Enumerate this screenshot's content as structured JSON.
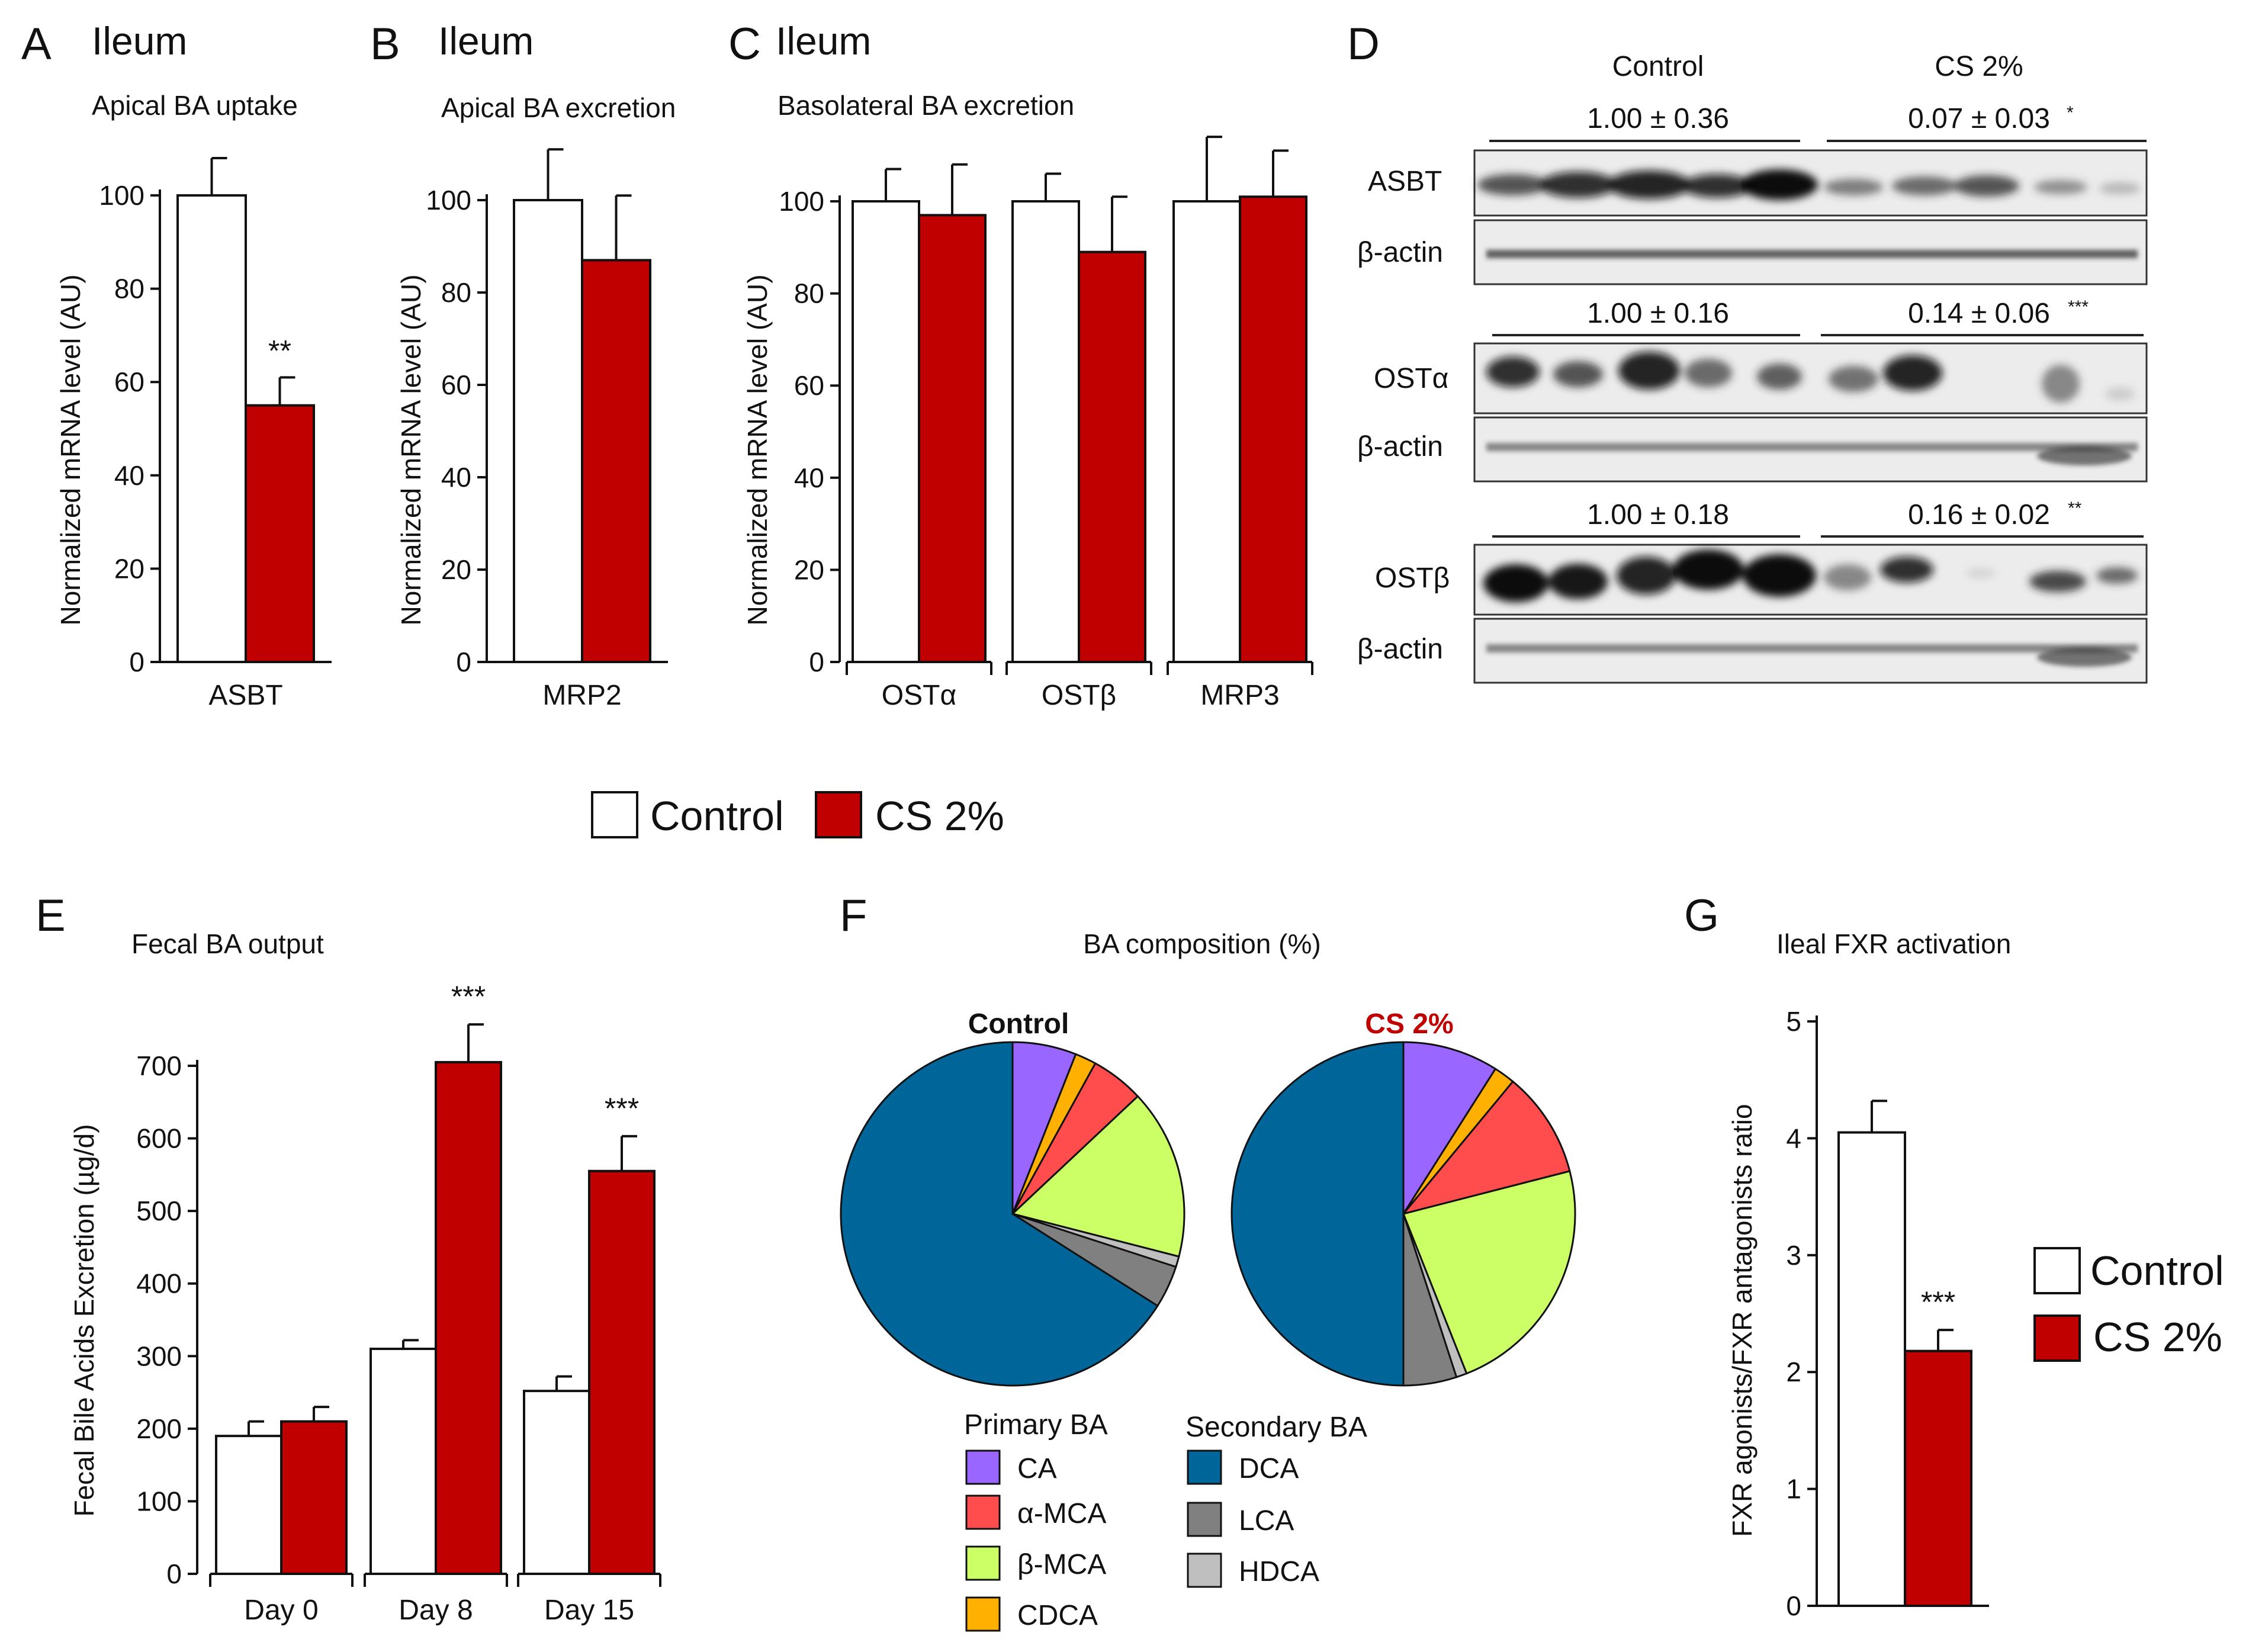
{
  "colors": {
    "control": "#ffffff",
    "cs": "#c00000",
    "CA": "#9966ff",
    "alpha_MCA": "#ff4d4d",
    "beta_MCA": "#ccff66",
    "CDCA": "#ffb000",
    "DCA": "#00669a",
    "LCA": "#808080",
    "HDCA": "#bfbfbf",
    "cs_title": "#c00000"
  },
  "legend": {
    "control": "Control",
    "cs": "CS 2%"
  },
  "panelA": {
    "letter": "A",
    "tissue": "Ileum",
    "subtitle": "Apical BA uptake",
    "ylabel": "Normalized  mRNA level (AU)",
    "yticks": [
      "0",
      "20",
      "40",
      "60",
      "80",
      "100"
    ]
  },
  "panelB": {
    "letter": "B",
    "tissue": "Ileum",
    "subtitle": "Apical BA excretion",
    "ylabel": "Normalized  mRNA level (AU)",
    "yticks": [
      "0",
      "20",
      "40",
      "60",
      "80",
      "100"
    ]
  },
  "panelC": {
    "letter": "C",
    "tissue": "Ileum",
    "subtitle": "Basolateral BA excretion",
    "ylabel": "Normalized  mRNA level (AU)",
    "yticks": [
      "0",
      "20",
      "40",
      "60",
      "80",
      "100"
    ]
  },
  "panelD": {
    "letter": "D",
    "group_control": "Control",
    "group_cs": "CS 2%",
    "blots": [
      {
        "protein": "ASBT",
        "actin": "β-actin",
        "control_val": "1.00 ± 0.36",
        "cs_val": "0.07 ± 0.03",
        "sig": "*"
      },
      {
        "protein": "OSTα",
        "actin": "β-actin",
        "control_val": "1.00 ± 0.16",
        "cs_val": "0.14 ± 0.06",
        "sig": "***"
      },
      {
        "protein": "OSTβ",
        "actin": "β-actin",
        "control_val": "1.00 ± 0.18",
        "cs_val": "0.16 ± 0.02",
        "sig": "**"
      }
    ]
  },
  "panelE": {
    "letter": "E",
    "subtitle": "Fecal BA output",
    "ylabel": "Fecal  Bile Acids   Excretion (µg/d)",
    "yticks": [
      "0",
      "100",
      "200",
      "300",
      "400",
      "500",
      "600",
      "700"
    ]
  },
  "panelF": {
    "letter": "F",
    "subtitle": "BA composition (%)",
    "pie_control_title": "Control",
    "pie_cs_title": "CS 2%",
    "primary_heading": "Primary BA",
    "secondary_heading": "Secondary BA",
    "primary_items": [
      "CA",
      "α-MCA",
      "β-MCA",
      "CDCA"
    ],
    "secondary_items": [
      "DCA",
      "LCA",
      "HDCA"
    ]
  },
  "panelG": {
    "letter": "G",
    "subtitle": "Ileal FXR activation",
    "ylabel": "FXR agonists/FXR antagonists ratio",
    "yticks": [
      "0",
      "1",
      "2",
      "3",
      "4",
      "5"
    ]
  },
  "chart_data": [
    {
      "id": "A",
      "type": "bar",
      "title": "Apical BA uptake",
      "ylabel": "Normalized  mRNA level (AU)",
      "ylim": [
        0,
        100
      ],
      "categories": [
        "ASBT"
      ],
      "series": [
        {
          "name": "Control",
          "values": [
            100
          ],
          "errors": [
            8
          ]
        },
        {
          "name": "CS 2%",
          "values": [
            55
          ],
          "errors": [
            6
          ]
        }
      ],
      "annotations": [
        {
          "category": "ASBT",
          "series": "CS 2%",
          "text": "**"
        }
      ]
    },
    {
      "id": "B",
      "type": "bar",
      "title": "Apical BA excretion",
      "ylabel": "Normalized  mRNA level (AU)",
      "ylim": [
        0,
        100
      ],
      "categories": [
        "MRP2"
      ],
      "series": [
        {
          "name": "Control",
          "values": [
            100
          ],
          "errors": [
            11
          ]
        },
        {
          "name": "CS 2%",
          "values": [
            87
          ],
          "errors": [
            14
          ]
        }
      ]
    },
    {
      "id": "C",
      "type": "bar",
      "title": "Basolateral BA excretion",
      "ylabel": "Normalized  mRNA level (AU)",
      "ylim": [
        0,
        100
      ],
      "categories": [
        "OSTα",
        "OSTβ",
        "MRP3"
      ],
      "series": [
        {
          "name": "Control",
          "values": [
            100,
            100,
            100
          ],
          "errors": [
            7,
            6,
            14
          ]
        },
        {
          "name": "CS 2%",
          "values": [
            97,
            89,
            101
          ],
          "errors": [
            11,
            12,
            10
          ]
        }
      ]
    },
    {
      "id": "E",
      "type": "bar",
      "title": "Fecal BA output",
      "ylabel": "Fecal  Bile Acids   Excretion (µg/d)",
      "ylim": [
        0,
        700
      ],
      "categories": [
        "Day 0",
        "Day 8",
        "Day 15"
      ],
      "series": [
        {
          "name": "Control",
          "values": [
            190,
            310,
            252
          ],
          "errors": [
            20,
            12,
            20
          ]
        },
        {
          "name": "CS 2%",
          "values": [
            210,
            705,
            555
          ],
          "errors": [
            20,
            52,
            48
          ]
        }
      ],
      "annotations": [
        {
          "category": "Day 8",
          "series": "CS 2%",
          "text": "***"
        },
        {
          "category": "Day 15",
          "series": "CS 2%",
          "text": "***"
        }
      ]
    },
    {
      "id": "F-control",
      "type": "pie",
      "title": "Control",
      "labels": [
        "CA",
        "α-MCA",
        "β-MCA",
        "CDCA",
        "DCA",
        "LCA",
        "HDCA"
      ],
      "order": [
        "CA",
        "CDCA",
        "α-MCA",
        "β-MCA",
        "HDCA",
        "LCA",
        "DCA"
      ],
      "values": {
        "CA": 6,
        "CDCA": 2,
        "α-MCA": 5,
        "β-MCA": 16,
        "HDCA": 1,
        "LCA": 4,
        "DCA": 66
      }
    },
    {
      "id": "F-cs",
      "type": "pie",
      "title": "CS 2%",
      "labels": [
        "CA",
        "α-MCA",
        "β-MCA",
        "CDCA",
        "DCA",
        "LCA",
        "HDCA"
      ],
      "order": [
        "CA",
        "CDCA",
        "α-MCA",
        "β-MCA",
        "HDCA",
        "LCA",
        "DCA"
      ],
      "values": {
        "CA": 9,
        "CDCA": 2,
        "α-MCA": 10,
        "β-MCA": 23,
        "HDCA": 1,
        "LCA": 5,
        "DCA": 50
      }
    },
    {
      "id": "G",
      "type": "bar",
      "title": "Ileal FXR activation",
      "ylabel": "FXR agonists/FXR antagonists ratio",
      "ylim": [
        0,
        5
      ],
      "categories": [
        ""
      ],
      "series": [
        {
          "name": "Control",
          "values": [
            4.05
          ],
          "errors": [
            0.27
          ]
        },
        {
          "name": "CS 2%",
          "values": [
            2.18
          ],
          "errors": [
            0.18
          ]
        }
      ],
      "annotations": [
        {
          "category": "",
          "series": "CS 2%",
          "text": "***"
        }
      ]
    }
  ]
}
